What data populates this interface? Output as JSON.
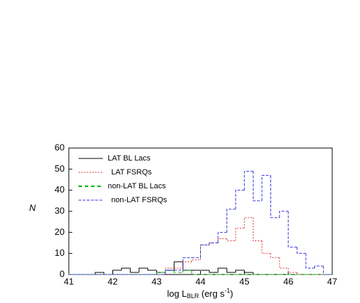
{
  "chart_data": {
    "type": "histogram",
    "ylabel": "N",
    "xlabel": [
      "log L",
      "BLR",
      " (erg s",
      "-1",
      ")"
    ],
    "bins": [
      41,
      41.2,
      41.4,
      41.6,
      41.8,
      42,
      42.2,
      42.4,
      42.6,
      42.8,
      43,
      43.2,
      43.4,
      43.6,
      43.8,
      44,
      44.2,
      44.4,
      44.6,
      44.8,
      45,
      45.2,
      45.4,
      45.6,
      45.8,
      46,
      46.2,
      46.4,
      46.6,
      46.8,
      47
    ],
    "series": [
      {
        "name": "LAT BL Lacs",
        "color": "#000000",
        "dash": "none",
        "values": [
          0,
          0,
          0,
          1,
          0,
          2,
          3,
          1,
          3,
          2,
          1,
          2,
          6,
          2,
          2,
          2,
          1,
          3,
          1,
          2,
          1,
          0,
          0,
          0,
          0,
          0,
          0,
          0,
          0,
          0
        ]
      },
      {
        "name": "LAT FSRQs",
        "color": "#e03030",
        "dash": "2 2",
        "values": [
          0,
          0,
          0,
          0,
          0,
          0,
          0,
          0,
          0,
          0,
          0,
          3,
          3,
          6,
          7,
          14,
          15,
          17,
          16,
          22,
          27,
          16,
          10,
          8,
          3,
          1,
          0,
          0,
          0,
          0
        ]
      },
      {
        "name": "non-LAT BL Lacs",
        "color": "#00b000",
        "dash": "5 4",
        "values": [
          0,
          0,
          0,
          0,
          0,
          0,
          0,
          0,
          0,
          0,
          1,
          2,
          1,
          2,
          0,
          0,
          0,
          0,
          0,
          0,
          0,
          0,
          0,
          0,
          0,
          0,
          0,
          0,
          0,
          0
        ]
      },
      {
        "name": "non-LAT FSRQs",
        "color": "#3030e0",
        "dash": "4 2",
        "values": [
          0,
          0,
          0,
          0,
          0,
          0,
          0,
          0,
          0,
          0,
          0,
          2,
          2,
          8,
          8,
          14,
          15,
          20,
          31,
          40,
          49,
          35,
          47,
          27,
          30,
          13,
          10,
          3,
          4,
          0
        ]
      }
    ],
    "xlim": [
      41,
      47
    ],
    "ylim": [
      0,
      60
    ],
    "xticks": [
      41,
      42,
      43,
      44,
      45,
      46,
      47
    ],
    "yticks": [
      0,
      10,
      20,
      30,
      40,
      50,
      60
    ]
  }
}
